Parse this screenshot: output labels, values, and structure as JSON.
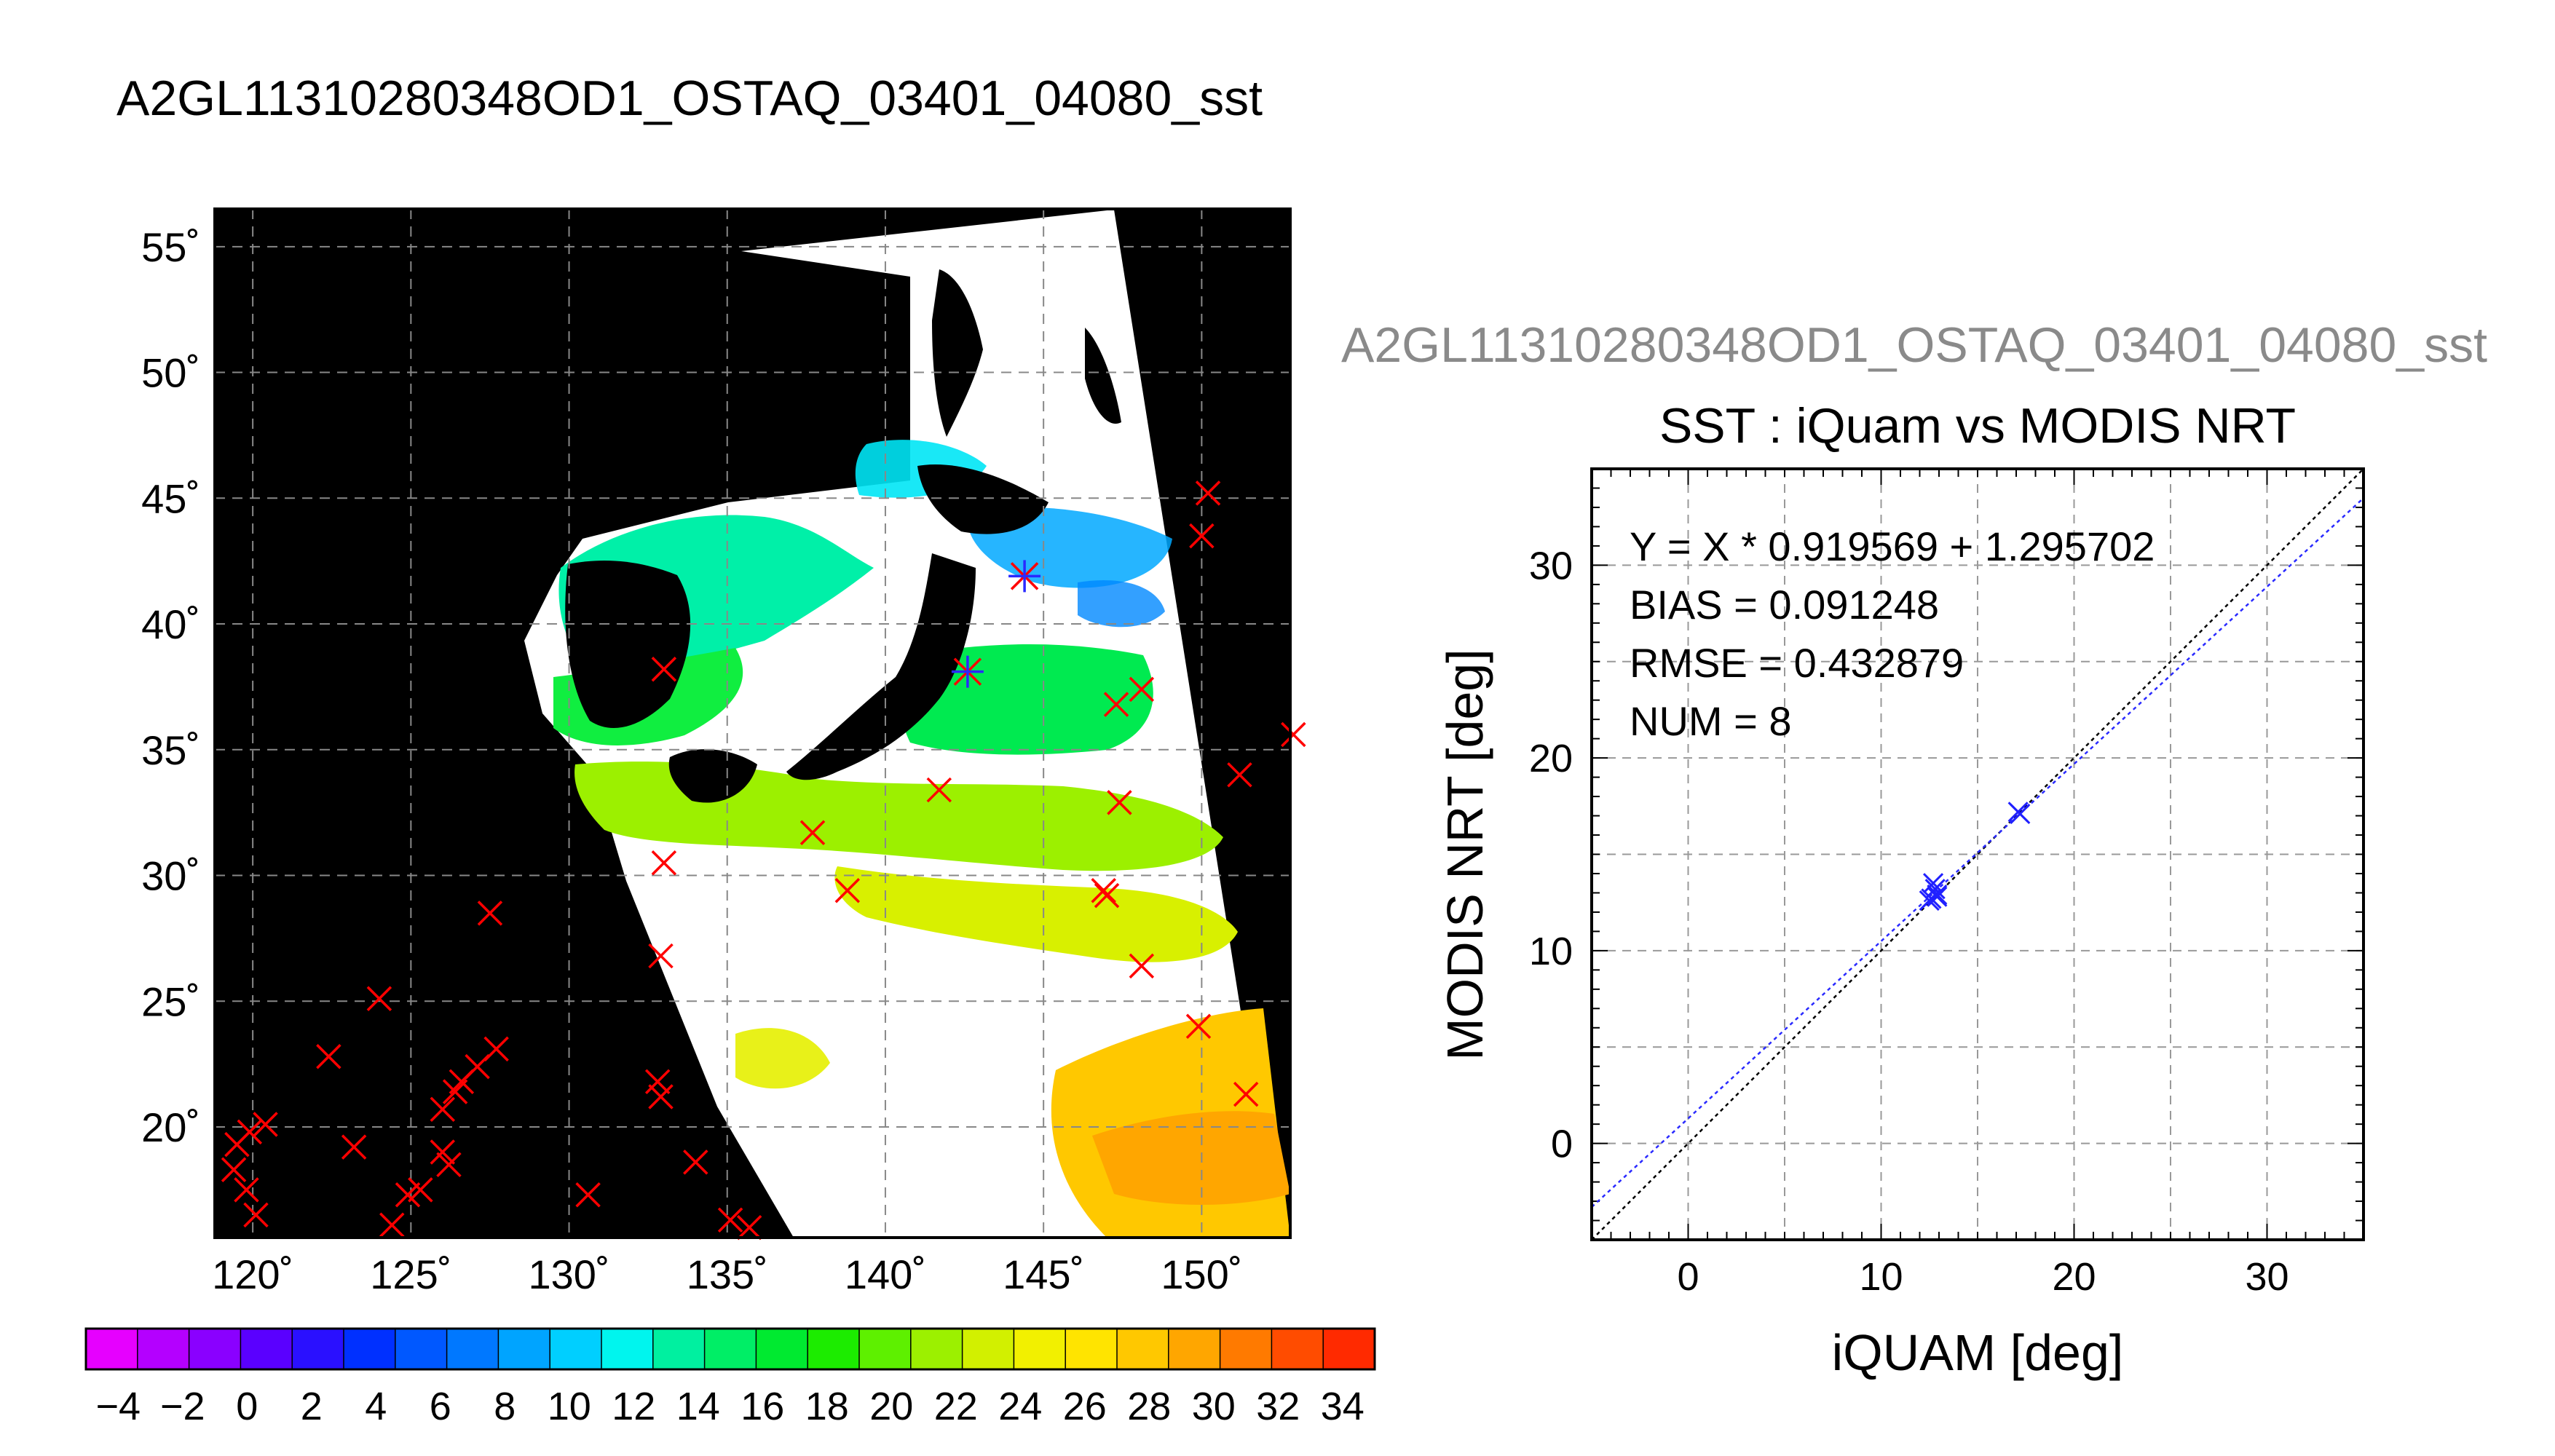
{
  "file_title": "A2GL11310280348OD1_OSTAQ_03401_04080_sst",
  "map": {
    "lon_ticks": [
      "120˚",
      "125˚",
      "130˚",
      "135˚",
      "140˚",
      "145˚",
      "150˚"
    ],
    "lat_ticks": [
      "20˚",
      "25˚",
      "30˚",
      "35˚",
      "40˚",
      "45˚",
      "50˚",
      "55˚"
    ],
    "lon_range": [
      118.8,
      152.8
    ],
    "lat_range": [
      15.6,
      56.5
    ],
    "iquam_marker_color": "#ff0000",
    "matchup_marker_color": "#2a2aff",
    "land_color": "#000000",
    "cloud_color": "#ffffff"
  },
  "colorbar": {
    "labels": [
      "-4",
      "-2",
      "0",
      "2",
      "4",
      "6",
      "8",
      "10",
      "12",
      "14",
      "16",
      "18",
      "20",
      "22",
      "24",
      "26",
      "28",
      "30",
      "32",
      "34"
    ],
    "range": [
      -5,
      35
    ],
    "colors": [
      "#e600ff",
      "#b400ff",
      "#8a00ff",
      "#5a00ff",
      "#2a10ff",
      "#0030ff",
      "#0058ff",
      "#0078ff",
      "#00a4ff",
      "#00cfff",
      "#00f5ee",
      "#00f0a0",
      "#00ee66",
      "#00ea30",
      "#1cec00",
      "#5ef000",
      "#9cf000",
      "#d2f000",
      "#f2f000",
      "#ffe400",
      "#ffc800",
      "#ffa600",
      "#ff7a00",
      "#ff4c00",
      "#ff2a00"
    ]
  },
  "scatter": {
    "grey_title": "A2GL11310280348OD1_OSTAQ_03401_04080_sst",
    "title": "SST : iQuam vs MODIS NRT",
    "xlabel": "iQUAM [deg]",
    "ylabel": "MODIS NRT [deg]",
    "stats": {
      "regression": "Y = X * 0.919569 + 1.295702",
      "bias": "BIAS = 0.091248",
      "rmse": "RMSE = 0.432879",
      "num": "NUM = 8"
    }
  },
  "chart_data": {
    "type": "scatter",
    "title": "SST : iQuam vs MODIS NRT",
    "xlabel": "iQUAM [deg]",
    "ylabel": "MODIS NRT [deg]",
    "xlim": [
      -5,
      35
    ],
    "ylim": [
      -5,
      35
    ],
    "x_ticks": [
      "0",
      "10",
      "20",
      "30"
    ],
    "y_ticks": [
      "0",
      "10",
      "20",
      "30"
    ],
    "grid": true,
    "points": [
      {
        "x": 12.6,
        "y": 12.7
      },
      {
        "x": 12.8,
        "y": 13.2
      },
      {
        "x": 12.7,
        "y": 13.5
      },
      {
        "x": 12.9,
        "y": 12.9
      },
      {
        "x": 12.5,
        "y": 12.6
      },
      {
        "x": 12.9,
        "y": 12.8
      },
      {
        "x": 17.1,
        "y": 17.2
      },
      {
        "x": 17.2,
        "y": 17.1
      }
    ],
    "regression": {
      "slope": 0.919569,
      "intercept": 1.295702,
      "color": "#2a2aff"
    },
    "identity_line": {
      "color": "#000000"
    },
    "point_color": "#2020ff"
  }
}
